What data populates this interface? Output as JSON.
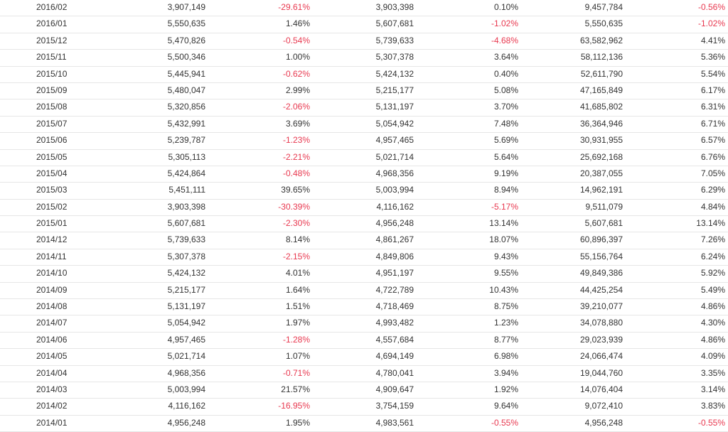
{
  "colors": {
    "negative": "#e8384f",
    "text": "#333333",
    "row_border": "#e6e6e6"
  },
  "table": {
    "rows": [
      [
        "2016/02",
        "3,907,149",
        "-29.61%",
        "3,903,398",
        "0.10%",
        "9,457,784",
        "-0.56%"
      ],
      [
        "2016/01",
        "5,550,635",
        "1.46%",
        "5,607,681",
        "-1.02%",
        "5,550,635",
        "-1.02%"
      ],
      [
        "2015/12",
        "5,470,826",
        "-0.54%",
        "5,739,633",
        "-4.68%",
        "63,582,962",
        "4.41%"
      ],
      [
        "2015/11",
        "5,500,346",
        "1.00%",
        "5,307,378",
        "3.64%",
        "58,112,136",
        "5.36%"
      ],
      [
        "2015/10",
        "5,445,941",
        "-0.62%",
        "5,424,132",
        "0.40%",
        "52,611,790",
        "5.54%"
      ],
      [
        "2015/09",
        "5,480,047",
        "2.99%",
        "5,215,177",
        "5.08%",
        "47,165,849",
        "6.17%"
      ],
      [
        "2015/08",
        "5,320,856",
        "-2.06%",
        "5,131,197",
        "3.70%",
        "41,685,802",
        "6.31%"
      ],
      [
        "2015/07",
        "5,432,991",
        "3.69%",
        "5,054,942",
        "7.48%",
        "36,364,946",
        "6.71%"
      ],
      [
        "2015/06",
        "5,239,787",
        "-1.23%",
        "4,957,465",
        "5.69%",
        "30,931,955",
        "6.57%"
      ],
      [
        "2015/05",
        "5,305,113",
        "-2.21%",
        "5,021,714",
        "5.64%",
        "25,692,168",
        "6.76%"
      ],
      [
        "2015/04",
        "5,424,864",
        "-0.48%",
        "4,968,356",
        "9.19%",
        "20,387,055",
        "7.05%"
      ],
      [
        "2015/03",
        "5,451,111",
        "39.65%",
        "5,003,994",
        "8.94%",
        "14,962,191",
        "6.29%"
      ],
      [
        "2015/02",
        "3,903,398",
        "-30.39%",
        "4,116,162",
        "-5.17%",
        "9,511,079",
        "4.84%"
      ],
      [
        "2015/01",
        "5,607,681",
        "-2.30%",
        "4,956,248",
        "13.14%",
        "5,607,681",
        "13.14%"
      ],
      [
        "2014/12",
        "5,739,633",
        "8.14%",
        "4,861,267",
        "18.07%",
        "60,896,397",
        "7.26%"
      ],
      [
        "2014/11",
        "5,307,378",
        "-2.15%",
        "4,849,806",
        "9.43%",
        "55,156,764",
        "6.24%"
      ],
      [
        "2014/10",
        "5,424,132",
        "4.01%",
        "4,951,197",
        "9.55%",
        "49,849,386",
        "5.92%"
      ],
      [
        "2014/09",
        "5,215,177",
        "1.64%",
        "4,722,789",
        "10.43%",
        "44,425,254",
        "5.49%"
      ],
      [
        "2014/08",
        "5,131,197",
        "1.51%",
        "4,718,469",
        "8.75%",
        "39,210,077",
        "4.86%"
      ],
      [
        "2014/07",
        "5,054,942",
        "1.97%",
        "4,993,482",
        "1.23%",
        "34,078,880",
        "4.30%"
      ],
      [
        "2014/06",
        "4,957,465",
        "-1.28%",
        "4,557,684",
        "8.77%",
        "29,023,939",
        "4.86%"
      ],
      [
        "2014/05",
        "5,021,714",
        "1.07%",
        "4,694,149",
        "6.98%",
        "24,066,474",
        "4.09%"
      ],
      [
        "2014/04",
        "4,968,356",
        "-0.71%",
        "4,780,041",
        "3.94%",
        "19,044,760",
        "3.35%"
      ],
      [
        "2014/03",
        "5,003,994",
        "21.57%",
        "4,909,647",
        "1.92%",
        "14,076,404",
        "3.14%"
      ],
      [
        "2014/02",
        "4,116,162",
        "-16.95%",
        "3,754,159",
        "9.64%",
        "9,072,410",
        "3.83%"
      ],
      [
        "2014/01",
        "4,956,248",
        "1.95%",
        "4,983,561",
        "-0.55%",
        "4,956,248",
        "-0.55%"
      ]
    ]
  }
}
